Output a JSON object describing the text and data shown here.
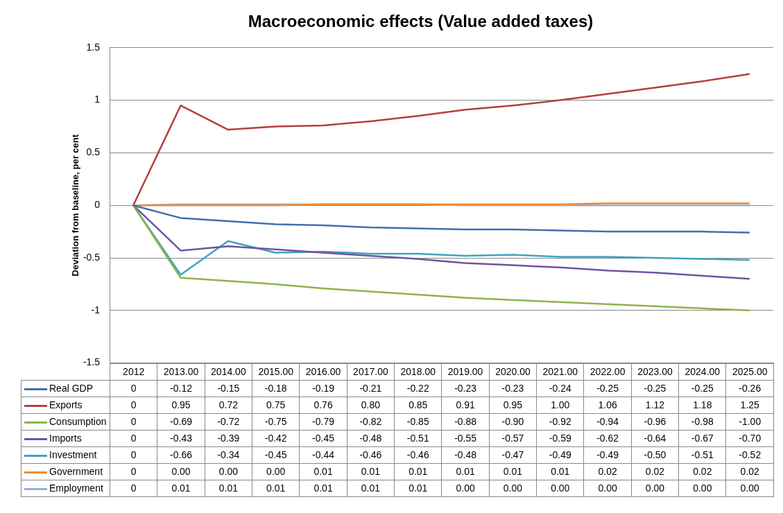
{
  "chart_data": {
    "type": "line",
    "title": "Macroeconomic effects (Value added taxes)",
    "ylabel": "Deviation from baseline, per cent",
    "categories": [
      "2012",
      "2013.00",
      "2014.00",
      "2015.00",
      "2016.00",
      "2017.00",
      "2018.00",
      "2019.00",
      "2020.00",
      "2021.00",
      "2022.00",
      "2023.00",
      "2024.00",
      "2025.00"
    ],
    "ylim": [
      -1.5,
      1.5
    ],
    "yticks": [
      -1.5,
      -1,
      -0.5,
      0,
      0.5,
      1,
      1.5
    ],
    "grid": "y",
    "legend": "bottom",
    "marker": "none",
    "line_style": "solid",
    "series": [
      {
        "name": "Real GDP",
        "color": "#4170ad",
        "values": [
          0,
          -0.12,
          -0.15,
          -0.18,
          -0.19,
          -0.21,
          -0.22,
          -0.23,
          -0.23,
          -0.24,
          -0.25,
          -0.25,
          -0.25,
          -0.26
        ],
        "value_labels": [
          "0",
          "-0.12",
          "-0.15",
          "-0.18",
          "-0.19",
          "-0.21",
          "-0.22",
          "-0.23",
          "-0.23",
          "-0.24",
          "-0.25",
          "-0.25",
          "-0.25",
          "-0.26"
        ]
      },
      {
        "name": "Exports",
        "color": "#b3403d",
        "values": [
          0,
          0.95,
          0.72,
          0.75,
          0.76,
          0.8,
          0.85,
          0.91,
          0.95,
          1.0,
          1.06,
          1.12,
          1.18,
          1.25
        ],
        "value_labels": [
          "0",
          "0.95",
          "0.72",
          "0.75",
          "0.76",
          "0.80",
          "0.85",
          "0.91",
          "0.95",
          "1.00",
          "1.06",
          "1.12",
          "1.18",
          "1.25"
        ]
      },
      {
        "name": "Consumption",
        "color": "#8db34c",
        "values": [
          0,
          -0.69,
          -0.72,
          -0.75,
          -0.79,
          -0.82,
          -0.85,
          -0.88,
          -0.9,
          -0.92,
          -0.94,
          -0.96,
          -0.98,
          -1.0
        ],
        "value_labels": [
          "0",
          "-0.69",
          "-0.72",
          "-0.75",
          "-0.79",
          "-0.82",
          "-0.85",
          "-0.88",
          "-0.90",
          "-0.92",
          "-0.94",
          "-0.96",
          "-0.98",
          "-1.00"
        ]
      },
      {
        "name": "Imports",
        "color": "#7152a0",
        "values": [
          0,
          -0.43,
          -0.39,
          -0.42,
          -0.45,
          -0.48,
          -0.51,
          -0.55,
          -0.57,
          -0.59,
          -0.62,
          -0.64,
          -0.67,
          -0.7
        ],
        "value_labels": [
          "0",
          "-0.43",
          "-0.39",
          "-0.42",
          "-0.45",
          "-0.48",
          "-0.51",
          "-0.55",
          "-0.57",
          "-0.59",
          "-0.62",
          "-0.64",
          "-0.67",
          "-0.70"
        ]
      },
      {
        "name": "Investment",
        "color": "#3fa3bd",
        "values": [
          0,
          -0.66,
          -0.34,
          -0.45,
          -0.44,
          -0.46,
          -0.46,
          -0.48,
          -0.47,
          -0.49,
          -0.49,
          -0.5,
          -0.51,
          -0.52
        ],
        "value_labels": [
          "0",
          "-0.66",
          "-0.34",
          "-0.45",
          "-0.44",
          "-0.46",
          "-0.46",
          "-0.48",
          "-0.47",
          "-0.49",
          "-0.49",
          "-0.50",
          "-0.51",
          "-0.52"
        ]
      },
      {
        "name": "Government",
        "color": "#f18b2e",
        "values": [
          0,
          0.0,
          0.0,
          0.0,
          0.01,
          0.01,
          0.01,
          0.01,
          0.01,
          0.01,
          0.02,
          0.02,
          0.02,
          0.02
        ],
        "value_labels": [
          "0",
          "0.00",
          "0.00",
          "0.00",
          "0.01",
          "0.01",
          "0.01",
          "0.01",
          "0.01",
          "0.01",
          "0.02",
          "0.02",
          "0.02",
          "0.02"
        ]
      },
      {
        "name": "Employment",
        "color": "#93b1dc",
        "values": [
          0,
          0.01,
          0.01,
          0.01,
          0.01,
          0.01,
          0.01,
          0.0,
          0.0,
          0.0,
          0.0,
          0.0,
          0.0,
          0.0
        ],
        "value_labels": [
          "0",
          "0.01",
          "0.01",
          "0.01",
          "0.01",
          "0.01",
          "0.01",
          "0.00",
          "0.00",
          "0.00",
          "0.00",
          "0.00",
          "0.00",
          "0.00"
        ]
      }
    ]
  }
}
